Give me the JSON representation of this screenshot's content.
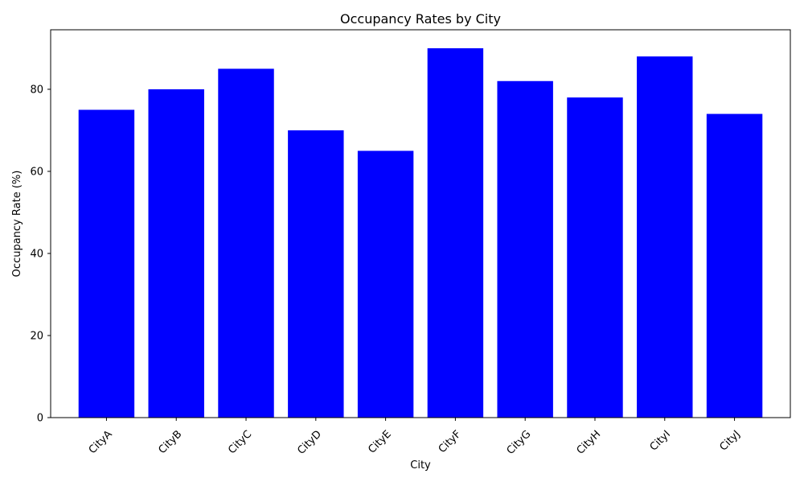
{
  "chart_data": {
    "type": "bar",
    "title": "Occupancy Rates by City",
    "xlabel": "City",
    "ylabel": "Occupancy Rate (%)",
    "categories": [
      "CityA",
      "CityB",
      "CityC",
      "CityD",
      "CityE",
      "CityF",
      "CityG",
      "CityH",
      "CityI",
      "CityJ"
    ],
    "values": [
      75,
      80,
      85,
      70,
      65,
      90,
      82,
      78,
      88,
      74
    ],
    "ylim": [
      0,
      94.5
    ],
    "yticks": [
      0,
      20,
      40,
      60,
      80
    ],
    "bar_color": "#0000ff",
    "grid": false,
    "legend": "none",
    "xtick_rotation_deg": 45
  }
}
